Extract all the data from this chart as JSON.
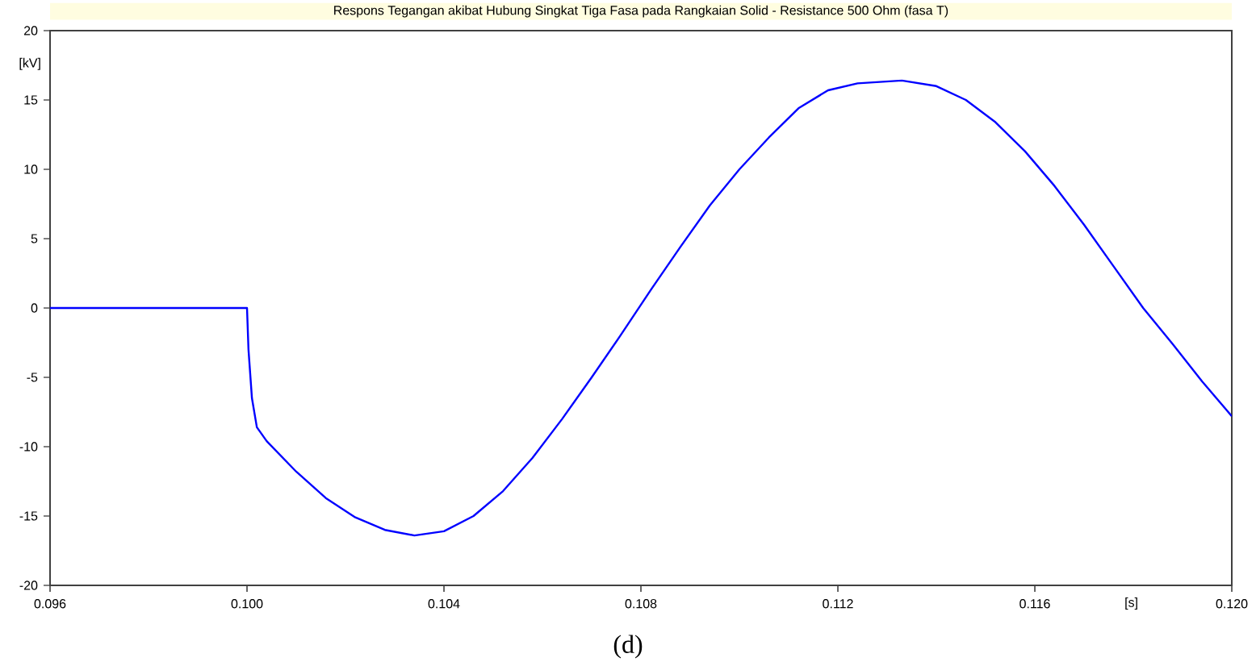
{
  "chart_data": {
    "type": "line",
    "title": "Respons Tegangan akibat Hubung Singkat Tiga Fasa pada Rangkaian Solid - Resistance 500 Ohm (fasa T)",
    "xlabel": "[s]",
    "ylabel": "[kV]",
    "x": [
      0.096,
      0.1,
      0.10003,
      0.1001,
      0.1002,
      0.1004,
      0.101,
      0.1016,
      0.1022,
      0.1028,
      0.1034,
      0.104,
      0.1046,
      0.1052,
      0.1058,
      0.1064,
      0.107,
      0.1076,
      0.1082,
      0.1088,
      0.1094,
      0.11,
      0.1106,
      0.1112,
      0.1118,
      0.1124,
      0.1133,
      0.114,
      0.1146,
      0.1152,
      0.1158,
      0.1164,
      0.117,
      0.1176,
      0.1182,
      0.1188,
      0.1194,
      0.12
    ],
    "values": [
      0,
      0,
      -3,
      -6.5,
      -8.6,
      -9.6,
      -11.8,
      -13.7,
      -15.1,
      -16.0,
      -16.4,
      -16.1,
      -15.0,
      -13.2,
      -10.8,
      -8.0,
      -5.0,
      -1.9,
      1.3,
      4.4,
      7.4,
      10.0,
      12.3,
      14.4,
      15.7,
      16.2,
      16.4,
      16.0,
      15.0,
      13.4,
      11.3,
      8.8,
      6.0,
      3.0,
      0.0,
      -2.6,
      -5.3,
      -7.8
    ],
    "color": "#0000ff",
    "xlim": [
      0.096,
      0.12
    ],
    "ylim": [
      -20,
      20
    ],
    "xticks": [
      0.096,
      {
        "value": 0.1,
        "label": "0.100"
      },
      0.104,
      0.108,
      0.112,
      0.116,
      {
        "value": 0.12,
        "label": "0.120"
      }
    ],
    "yticks": [
      -20,
      -15,
      -10,
      -5,
      0,
      5,
      10,
      15,
      20
    ],
    "annotations": [
      "(d)"
    ]
  }
}
